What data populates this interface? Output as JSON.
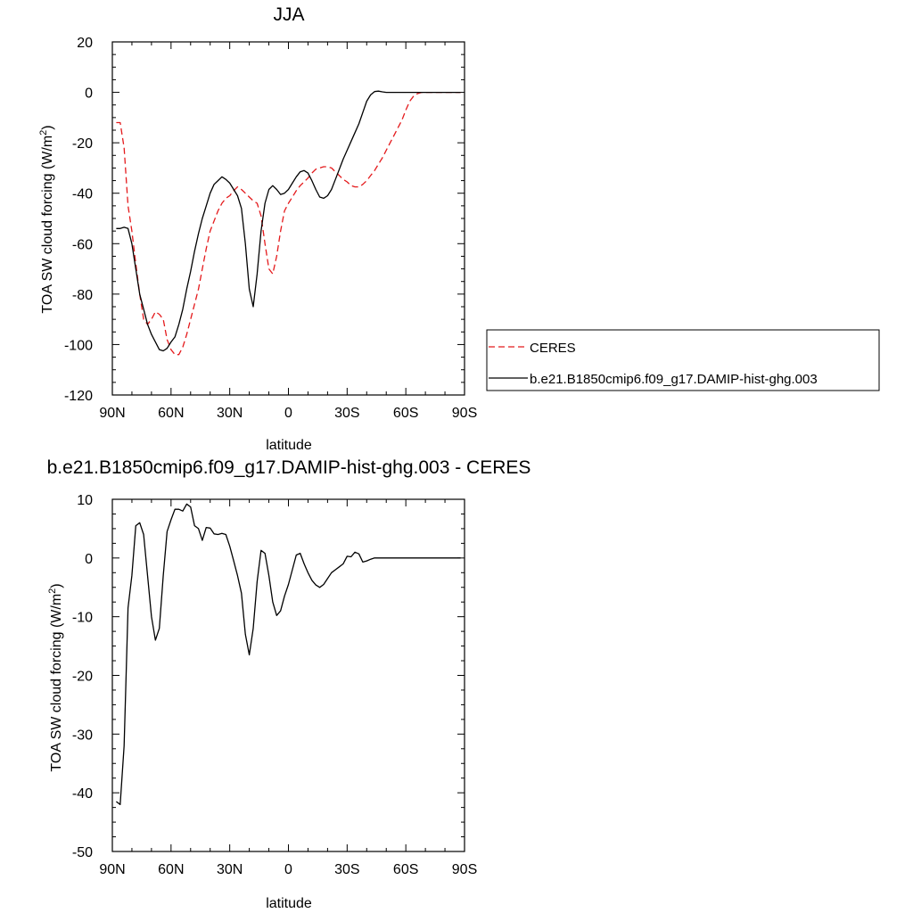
{
  "chart_data": [
    {
      "type": "line",
      "title": "JJA",
      "xlabel": "latitude",
      "ylabel": "TOA SW cloud forcing (W/m²)",
      "ylabel_parts": [
        "TOA SW cloud forcing (W/m",
        "2",
        ")"
      ],
      "xlim": [
        90,
        -90
      ],
      "ylim": [
        -120,
        20
      ],
      "xticks": [
        90,
        60,
        30,
        0,
        -30,
        -60,
        -90
      ],
      "xtick_labels": [
        "90N",
        "60N",
        "30N",
        "0",
        "30S",
        "60S",
        "90S"
      ],
      "yticks": [
        20,
        0,
        -20,
        -40,
        -60,
        -80,
        -100,
        -120
      ],
      "ytick_labels": [
        "20",
        "0",
        "-20",
        "-40",
        "-60",
        "-80",
        "-100",
        "-120"
      ],
      "legend_position": "right",
      "series": [
        {
          "name": "CERES",
          "color": "#e41a1c",
          "dash": "dashed",
          "x": [
            88,
            86,
            84,
            82,
            80,
            78,
            76,
            74,
            72,
            70,
            68,
            66,
            64,
            62,
            60,
            58,
            56,
            54,
            52,
            50,
            48,
            46,
            44,
            42,
            40,
            38,
            36,
            34,
            32,
            30,
            28,
            26,
            24,
            22,
            20,
            18,
            16,
            14,
            12,
            10,
            8,
            6,
            4,
            2,
            0,
            -2,
            -4,
            -6,
            -8,
            -10,
            -12,
            -14,
            -16,
            -18,
            -20,
            -22,
            -24,
            -26,
            -28,
            -30,
            -32,
            -34,
            -36,
            -38,
            -40,
            -42,
            -44,
            -46,
            -48,
            -50,
            -52,
            -54,
            -56,
            -58,
            -60,
            -62,
            -64,
            -66,
            -68,
            -70,
            -72,
            -74,
            -76,
            -78,
            -80,
            -82,
            -84,
            -86,
            -88
          ],
          "values": [
            -12,
            -12,
            -22,
            -45,
            -55,
            -68,
            -80,
            -90,
            -92,
            -90,
            -87,
            -88,
            -90,
            -98,
            -102,
            -104,
            -104,
            -101,
            -96,
            -90,
            -84,
            -78,
            -70,
            -62,
            -55,
            -51,
            -47,
            -44,
            -42,
            -41,
            -39,
            -37.5,
            -38.5,
            -40,
            -41.5,
            -43,
            -44,
            -49,
            -60,
            -70,
            -72,
            -65,
            -55,
            -47,
            -44,
            -41.5,
            -39,
            -37,
            -35.5,
            -34,
            -32,
            -30.5,
            -30,
            -29.5,
            -29.5,
            -30,
            -31.5,
            -33,
            -34.5,
            -35.5,
            -37,
            -37.5,
            -37.5,
            -36.5,
            -35,
            -33,
            -31,
            -28.5,
            -26,
            -23,
            -20,
            -17,
            -14,
            -11,
            -7,
            -3.5,
            -1.5,
            -0.5,
            0,
            0,
            0,
            0,
            0,
            0,
            0,
            0,
            0,
            0,
            0
          ]
        },
        {
          "name": "b.e21.B1850cmip6.f09_g17.DAMIP-hist-ghg.003",
          "color": "#000000",
          "dash": "solid",
          "x": [
            88,
            86,
            84,
            82,
            80,
            78,
            76,
            74,
            72,
            70,
            68,
            66,
            64,
            62,
            60,
            58,
            56,
            54,
            52,
            50,
            48,
            46,
            44,
            42,
            40,
            38,
            36,
            34,
            32,
            30,
            28,
            26,
            24,
            22,
            20,
            18,
            16,
            14,
            12,
            10,
            8,
            6,
            4,
            2,
            0,
            -2,
            -4,
            -6,
            -8,
            -10,
            -12,
            -14,
            -16,
            -18,
            -20,
            -22,
            -24,
            -26,
            -28,
            -30,
            -32,
            -34,
            -36,
            -38,
            -40,
            -42,
            -44,
            -46,
            -48,
            -50,
            -52,
            -54,
            -56,
            -58,
            -60,
            -62,
            -64,
            -66,
            -68,
            -70,
            -72,
            -74,
            -76,
            -78,
            -80,
            -82,
            -84,
            -86,
            -88
          ],
          "values": [
            -54,
            -54,
            -53.5,
            -54,
            -60,
            -70,
            -80,
            -86,
            -92,
            -96,
            -99,
            -102,
            -102.5,
            -101.5,
            -99,
            -97,
            -92,
            -86,
            -78,
            -71,
            -63,
            -56,
            -50,
            -45,
            -40,
            -36.5,
            -35,
            -33.5,
            -34.5,
            -36,
            -38.5,
            -41,
            -46,
            -60,
            -78,
            -85,
            -72,
            -55,
            -44,
            -38.5,
            -37,
            -38.5,
            -40.5,
            -40,
            -38.5,
            -36,
            -33.5,
            -31.5,
            -31,
            -32,
            -35,
            -38.5,
            -41.5,
            -42,
            -41,
            -38.5,
            -34.5,
            -30.5,
            -26.5,
            -23,
            -19.5,
            -16,
            -12.5,
            -8,
            -3.5,
            -1,
            0.3,
            0.5,
            0.2,
            0,
            0,
            0,
            0,
            0,
            0,
            0,
            0,
            0,
            0,
            0,
            0,
            0,
            0,
            0,
            0,
            0,
            0,
            0,
            0
          ]
        }
      ]
    },
    {
      "type": "line",
      "title": "b.e21.B1850cmip6.f09_g17.DAMIP-hist-ghg.003 - CERES",
      "xlabel": "latitude",
      "ylabel": "TOA SW cloud forcing (W/m²)",
      "ylabel_parts": [
        "TOA SW cloud forcing (W/m",
        "2",
        ")"
      ],
      "xlim": [
        90,
        -90
      ],
      "ylim": [
        -50,
        10
      ],
      "xticks": [
        90,
        60,
        30,
        0,
        -30,
        -60,
        -90
      ],
      "xtick_labels": [
        "90N",
        "60N",
        "30N",
        "0",
        "30S",
        "60S",
        "90S"
      ],
      "yticks": [
        10,
        0,
        -10,
        -20,
        -30,
        -40,
        -50
      ],
      "ytick_labels": [
        "10",
        "0",
        "-10",
        "-20",
        "-30",
        "-40",
        "-50"
      ],
      "series": [
        {
          "color": "#000000",
          "dash": "solid",
          "x": [
            88,
            86,
            84,
            82,
            80,
            78,
            76,
            74,
            72,
            70,
            68,
            66,
            64,
            62,
            60,
            58,
            56,
            54,
            52,
            50,
            48,
            46,
            44,
            42,
            40,
            38,
            36,
            34,
            32,
            30,
            28,
            26,
            24,
            22,
            20,
            18,
            16,
            14,
            12,
            10,
            8,
            6,
            4,
            2,
            0,
            -2,
            -4,
            -6,
            -8,
            -10,
            -12,
            -14,
            -16,
            -18,
            -20,
            -22,
            -24,
            -26,
            -28,
            -30,
            -32,
            -34,
            -36,
            -38,
            -40,
            -42,
            -44,
            -46,
            -48,
            -50,
            -52,
            -54,
            -56,
            -58,
            -60,
            -62,
            -64,
            -66,
            -68,
            -70,
            -72,
            -74,
            -76,
            -78,
            -80,
            -82,
            -84,
            -86,
            -88
          ],
          "values": [
            -41.5,
            -42,
            -32,
            -8.5,
            -3,
            5.5,
            6,
            4,
            -3,
            -10,
            -14,
            -12,
            -3,
            4.5,
            6.5,
            8.3,
            8.3,
            8,
            9.2,
            8.7,
            5.5,
            5,
            3,
            5.2,
            5.1,
            4.1,
            4,
            4.2,
            4,
            2,
            -0.5,
            -3,
            -6,
            -13,
            -16.5,
            -12,
            -4,
            1.3,
            0.8,
            -3,
            -7.5,
            -9.8,
            -9,
            -6.5,
            -4.5,
            -2,
            0.5,
            0.8,
            -1,
            -2.5,
            -3.8,
            -4.6,
            -5,
            -4.5,
            -3.5,
            -2.5,
            -2,
            -1.5,
            -1,
            0.3,
            0.2,
            1,
            0.7,
            -0.7,
            -0.5,
            -0.2,
            0,
            0,
            0,
            0,
            0,
            0,
            0,
            0,
            0,
            0,
            0,
            0,
            0,
            0,
            0,
            0,
            0,
            0,
            0,
            0,
            0,
            0,
            0
          ]
        }
      ]
    }
  ]
}
